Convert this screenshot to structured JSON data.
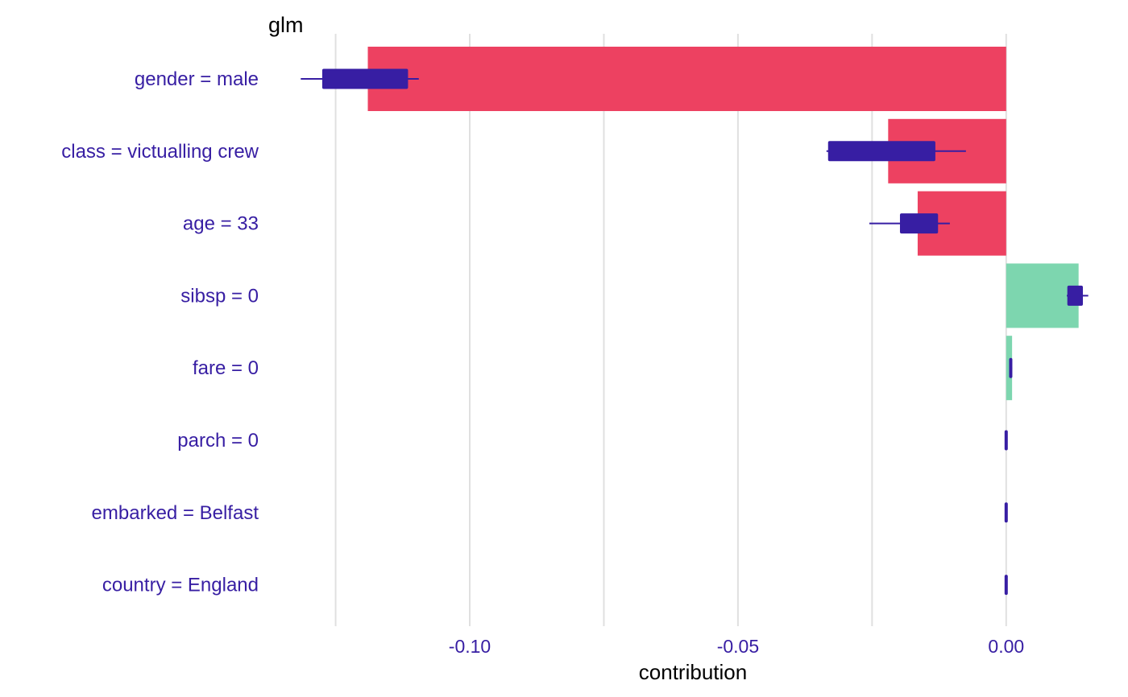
{
  "chart_data": {
    "type": "bar",
    "title": "glm",
    "xlabel": "contribution",
    "ylabel": "",
    "xlim": [
      -0.1365,
      0.0155
    ],
    "x_ticks": [
      -0.1,
      -0.05,
      0.0
    ],
    "x_tick_labels": [
      "-0.10",
      "-0.05",
      "0.00"
    ],
    "minor_gridlines": [
      -0.125,
      -0.075,
      -0.025
    ],
    "grid": true,
    "categories": [
      "gender = male",
      "class = victualling crew",
      "age = 33",
      "sibsp = 0",
      "fare = 0",
      "parch = 0",
      "embarked = Belfast",
      "country = England"
    ],
    "values": [
      -0.119,
      -0.022,
      -0.0165,
      0.0135,
      0.0011,
      0,
      0,
      0
    ],
    "boxplots": [
      {
        "whisker_low": -0.1315,
        "q1": -0.1275,
        "q3": -0.1115,
        "whisker_high": -0.1095
      },
      {
        "whisker_low": -0.0335,
        "q1": -0.0332,
        "q3": -0.0132,
        "whisker_high": -0.0075
      },
      {
        "whisker_low": -0.0255,
        "q1": -0.0198,
        "q3": -0.0127,
        "whisker_high": -0.0105
      },
      {
        "whisker_low": 0.0113,
        "q1": 0.0114,
        "q3": 0.0143,
        "whisker_high": 0.0153
      },
      {
        "whisker_low": 0.0006,
        "q1": 0.0007,
        "q3": 0.001,
        "whisker_high": 0.0011
      },
      {
        "whisker_low": -0.0002,
        "q1": -0.0001,
        "q3": 0.0001,
        "whisker_high": 0.0002
      },
      {
        "whisker_low": -0.0002,
        "q1": -0.0001,
        "q3": 0.0001,
        "whisker_high": 0.0002
      },
      {
        "whisker_low": -0.0002,
        "q1": -0.0001,
        "q3": 0.0001,
        "whisker_high": 0.0002
      }
    ],
    "colors": {
      "negative": "#ED4161",
      "positive": "#7DD6AF",
      "boxplot": "#371EA3",
      "text": "#371EA3",
      "grid": "#E0E0E0"
    }
  }
}
